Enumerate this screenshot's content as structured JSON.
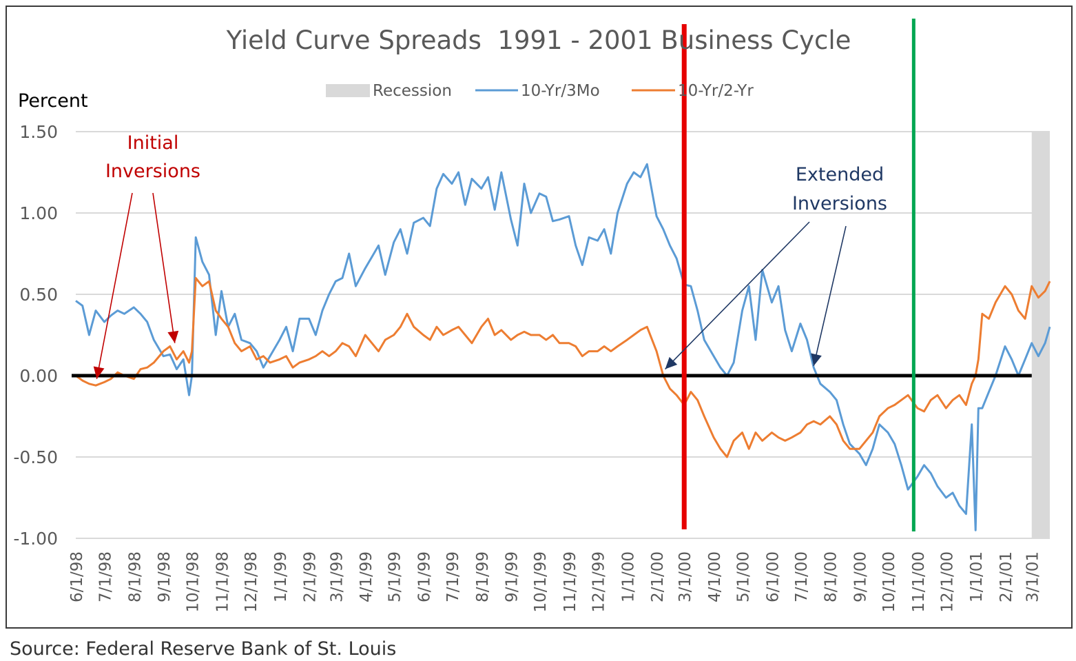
{
  "chart_data": {
    "type": "line",
    "title": "Yield Curve Spreads  1991 - 2001 Business Cycle",
    "ylabel": "Percent",
    "xlabel": "",
    "ylim": [
      -1.0,
      1.5
    ],
    "y_ticks": [
      "1.50",
      "1.00",
      "0.50",
      "0.00",
      "-0.50",
      "-1.00"
    ],
    "y_tick_values": [
      1.5,
      1.0,
      0.5,
      0.0,
      -0.5,
      -1.0
    ],
    "x_range": [
      "1998-06-01",
      "2001-03-20"
    ],
    "x_ticks": [
      "6/1/98",
      "7/1/98",
      "8/1/98",
      "9/1/98",
      "10/1/98",
      "11/1/98",
      "12/1/98",
      "1/1/99",
      "2/1/99",
      "3/1/99",
      "4/1/99",
      "5/1/99",
      "6/1/99",
      "7/1/99",
      "8/1/99",
      "9/1/99",
      "10/1/99",
      "11/1/99",
      "12/1/99",
      "1/1/00",
      "2/1/00",
      "3/1/00",
      "4/1/00",
      "5/1/00",
      "6/1/00",
      "7/1/00",
      "8/1/00",
      "9/1/00",
      "10/1/00",
      "11/1/00",
      "12/1/00",
      "1/1/01",
      "2/1/01",
      "3/1/01"
    ],
    "x_tick_dates": [
      "1998-06-01",
      "1998-07-01",
      "1998-08-01",
      "1998-09-01",
      "1998-10-01",
      "1998-11-01",
      "1998-12-01",
      "1999-01-01",
      "1999-02-01",
      "1999-03-01",
      "1999-04-01",
      "1999-05-01",
      "1999-06-01",
      "1999-07-01",
      "1999-08-01",
      "1999-09-01",
      "1999-10-01",
      "1999-11-01",
      "1999-12-01",
      "2000-01-01",
      "2000-02-01",
      "2000-03-01",
      "2000-04-01",
      "2000-05-01",
      "2000-06-01",
      "2000-07-01",
      "2000-08-01",
      "2000-09-01",
      "2000-10-01",
      "2000-11-01",
      "2000-12-01",
      "2001-01-01",
      "2001-02-01",
      "2001-03-01"
    ],
    "grid": true,
    "legend_position": "top-center",
    "recession": {
      "label": "Recession",
      "start": "2001-03-01",
      "end": "2001-03-20",
      "color": "#d9d9d9"
    },
    "series": [
      {
        "name": "10-Yr/3Mo",
        "color": "#5b9bd5",
        "x": [
          "1998-06-01",
          "1998-06-08",
          "1998-06-15",
          "1998-06-22",
          "1998-07-01",
          "1998-07-08",
          "1998-07-15",
          "1998-07-22",
          "1998-08-01",
          "1998-08-08",
          "1998-08-15",
          "1998-08-22",
          "1998-09-01",
          "1998-09-08",
          "1998-09-15",
          "1998-09-22",
          "1998-09-28",
          "1998-10-01",
          "1998-10-05",
          "1998-10-12",
          "1998-10-19",
          "1998-10-26",
          "1998-11-01",
          "1998-11-08",
          "1998-11-15",
          "1998-11-22",
          "1998-12-01",
          "1998-12-08",
          "1998-12-15",
          "1998-12-22",
          "1999-01-01",
          "1999-01-08",
          "1999-01-15",
          "1999-01-22",
          "1999-02-01",
          "1999-02-08",
          "1999-02-15",
          "1999-02-22",
          "1999-03-01",
          "1999-03-08",
          "1999-03-15",
          "1999-03-22",
          "1999-04-01",
          "1999-04-08",
          "1999-04-15",
          "1999-04-22",
          "1999-05-01",
          "1999-05-08",
          "1999-05-15",
          "1999-05-22",
          "1999-06-01",
          "1999-06-08",
          "1999-06-15",
          "1999-06-22",
          "1999-07-01",
          "1999-07-08",
          "1999-07-15",
          "1999-07-22",
          "1999-08-01",
          "1999-08-08",
          "1999-08-15",
          "1999-08-22",
          "1999-09-01",
          "1999-09-08",
          "1999-09-15",
          "1999-09-22",
          "1999-10-01",
          "1999-10-08",
          "1999-10-15",
          "1999-10-22",
          "1999-11-01",
          "1999-11-08",
          "1999-11-15",
          "1999-11-22",
          "1999-12-01",
          "1999-12-08",
          "1999-12-15",
          "1999-12-22",
          "2000-01-01",
          "2000-01-08",
          "2000-01-15",
          "2000-01-22",
          "2000-02-01",
          "2000-02-08",
          "2000-02-15",
          "2000-02-22",
          "2000-03-01",
          "2000-03-08",
          "2000-03-15",
          "2000-03-22",
          "2000-04-01",
          "2000-04-08",
          "2000-04-15",
          "2000-04-22",
          "2000-05-01",
          "2000-05-08",
          "2000-05-15",
          "2000-05-22",
          "2000-06-01",
          "2000-06-08",
          "2000-06-15",
          "2000-06-22",
          "2000-07-01",
          "2000-07-08",
          "2000-07-15",
          "2000-07-22",
          "2000-08-01",
          "2000-08-08",
          "2000-08-15",
          "2000-08-22",
          "2000-09-01",
          "2000-09-08",
          "2000-09-15",
          "2000-09-22",
          "2000-10-01",
          "2000-10-08",
          "2000-10-15",
          "2000-10-22",
          "2000-11-01",
          "2000-11-08",
          "2000-11-15",
          "2000-11-22",
          "2000-12-01",
          "2000-12-08",
          "2000-12-15",
          "2000-12-22",
          "2000-12-28",
          "2001-01-01",
          "2001-01-04",
          "2001-01-08",
          "2001-01-15",
          "2001-01-22",
          "2001-02-01",
          "2001-02-08",
          "2001-02-15",
          "2001-02-22",
          "2001-03-01",
          "2001-03-08",
          "2001-03-15",
          "2001-03-20"
        ],
        "values": [
          0.46,
          0.43,
          0.25,
          0.4,
          0.33,
          0.37,
          0.4,
          0.38,
          0.42,
          0.38,
          0.33,
          0.22,
          0.12,
          0.13,
          0.04,
          0.1,
          -0.12,
          0.0,
          0.85,
          0.7,
          0.62,
          0.25,
          0.52,
          0.3,
          0.38,
          0.22,
          0.2,
          0.15,
          0.05,
          0.12,
          0.22,
          0.3,
          0.15,
          0.35,
          0.35,
          0.25,
          0.4,
          0.5,
          0.58,
          0.6,
          0.75,
          0.55,
          0.66,
          0.73,
          0.8,
          0.62,
          0.82,
          0.9,
          0.75,
          0.94,
          0.97,
          0.92,
          1.15,
          1.24,
          1.18,
          1.25,
          1.05,
          1.21,
          1.15,
          1.22,
          1.02,
          1.25,
          0.96,
          0.8,
          1.18,
          1.0,
          1.12,
          1.1,
          0.95,
          0.96,
          0.98,
          0.8,
          0.68,
          0.85,
          0.83,
          0.9,
          0.75,
          1.0,
          1.18,
          1.25,
          1.22,
          1.3,
          0.98,
          0.9,
          0.8,
          0.72,
          0.56,
          0.55,
          0.4,
          0.22,
          0.12,
          0.05,
          0.0,
          0.08,
          0.4,
          0.55,
          0.22,
          0.65,
          0.45,
          0.55,
          0.28,
          0.15,
          0.32,
          0.22,
          0.05,
          -0.05,
          -0.1,
          -0.15,
          -0.3,
          -0.42,
          -0.48,
          -0.55,
          -0.45,
          -0.3,
          -0.35,
          -0.42,
          -0.55,
          -0.7,
          -0.62,
          -0.55,
          -0.6,
          -0.68,
          -0.75,
          -0.72,
          -0.8,
          -0.85,
          -0.3,
          -0.95,
          -0.2,
          -0.2,
          -0.1,
          0.0,
          0.18,
          0.1,
          0.0,
          0.1,
          0.2,
          0.12,
          0.2,
          0.3
        ]
      },
      {
        "name": "10-Yr/2-Yr",
        "color": "#ed7d31",
        "x": [
          "1998-06-01",
          "1998-06-08",
          "1998-06-15",
          "1998-06-22",
          "1998-07-01",
          "1998-07-08",
          "1998-07-15",
          "1998-07-22",
          "1998-08-01",
          "1998-08-08",
          "1998-08-15",
          "1998-08-22",
          "1998-09-01",
          "1998-09-08",
          "1998-09-15",
          "1998-09-22",
          "1998-09-28",
          "1998-10-01",
          "1998-10-05",
          "1998-10-12",
          "1998-10-19",
          "1998-10-26",
          "1998-11-01",
          "1998-11-08",
          "1998-11-15",
          "1998-11-22",
          "1998-12-01",
          "1998-12-08",
          "1998-12-15",
          "1998-12-22",
          "1999-01-01",
          "1999-01-08",
          "1999-01-15",
          "1999-01-22",
          "1999-02-01",
          "1999-02-08",
          "1999-02-15",
          "1999-02-22",
          "1999-03-01",
          "1999-03-08",
          "1999-03-15",
          "1999-03-22",
          "1999-04-01",
          "1999-04-08",
          "1999-04-15",
          "1999-04-22",
          "1999-05-01",
          "1999-05-08",
          "1999-05-15",
          "1999-05-22",
          "1999-06-01",
          "1999-06-08",
          "1999-06-15",
          "1999-06-22",
          "1999-07-01",
          "1999-07-08",
          "1999-07-15",
          "1999-07-22",
          "1999-08-01",
          "1999-08-08",
          "1999-08-15",
          "1999-08-22",
          "1999-09-01",
          "1999-09-08",
          "1999-09-15",
          "1999-09-22",
          "1999-10-01",
          "1999-10-08",
          "1999-10-15",
          "1999-10-22",
          "1999-11-01",
          "1999-11-08",
          "1999-11-15",
          "1999-11-22",
          "1999-12-01",
          "1999-12-08",
          "1999-12-15",
          "1999-12-22",
          "2000-01-01",
          "2000-01-08",
          "2000-01-15",
          "2000-01-22",
          "2000-02-01",
          "2000-02-08",
          "2000-02-15",
          "2000-02-22",
          "2000-03-01",
          "2000-03-08",
          "2000-03-15",
          "2000-03-22",
          "2000-04-01",
          "2000-04-08",
          "2000-04-15",
          "2000-04-22",
          "2000-05-01",
          "2000-05-08",
          "2000-05-15",
          "2000-05-22",
          "2000-06-01",
          "2000-06-08",
          "2000-06-15",
          "2000-06-22",
          "2000-07-01",
          "2000-07-08",
          "2000-07-15",
          "2000-07-22",
          "2000-08-01",
          "2000-08-08",
          "2000-08-15",
          "2000-08-22",
          "2000-09-01",
          "2000-09-08",
          "2000-09-15",
          "2000-09-22",
          "2000-10-01",
          "2000-10-08",
          "2000-10-15",
          "2000-10-22",
          "2000-11-01",
          "2000-11-08",
          "2000-11-15",
          "2000-11-22",
          "2000-12-01",
          "2000-12-08",
          "2000-12-15",
          "2000-12-22",
          "2000-12-28",
          "2001-01-01",
          "2001-01-04",
          "2001-01-08",
          "2001-01-15",
          "2001-01-22",
          "2001-02-01",
          "2001-02-08",
          "2001-02-15",
          "2001-02-22",
          "2001-03-01",
          "2001-03-08",
          "2001-03-15",
          "2001-03-20"
        ],
        "values": [
          0.0,
          -0.03,
          -0.05,
          -0.06,
          -0.04,
          -0.02,
          0.02,
          0.0,
          -0.02,
          0.04,
          0.05,
          0.08,
          0.15,
          0.18,
          0.1,
          0.15,
          0.08,
          0.15,
          0.6,
          0.55,
          0.58,
          0.4,
          0.35,
          0.3,
          0.2,
          0.15,
          0.18,
          0.1,
          0.12,
          0.08,
          0.1,
          0.12,
          0.05,
          0.08,
          0.1,
          0.12,
          0.15,
          0.12,
          0.15,
          0.2,
          0.18,
          0.12,
          0.25,
          0.2,
          0.15,
          0.22,
          0.25,
          0.3,
          0.38,
          0.3,
          0.25,
          0.22,
          0.3,
          0.25,
          0.28,
          0.3,
          0.25,
          0.2,
          0.3,
          0.35,
          0.25,
          0.28,
          0.22,
          0.25,
          0.27,
          0.25,
          0.25,
          0.22,
          0.25,
          0.2,
          0.2,
          0.18,
          0.12,
          0.15,
          0.15,
          0.18,
          0.15,
          0.18,
          0.22,
          0.25,
          0.28,
          0.3,
          0.15,
          0.0,
          -0.08,
          -0.12,
          -0.18,
          -0.1,
          -0.15,
          -0.25,
          -0.38,
          -0.45,
          -0.5,
          -0.4,
          -0.35,
          -0.45,
          -0.35,
          -0.4,
          -0.35,
          -0.38,
          -0.4,
          -0.38,
          -0.35,
          -0.3,
          -0.28,
          -0.3,
          -0.25,
          -0.3,
          -0.4,
          -0.45,
          -0.45,
          -0.4,
          -0.35,
          -0.25,
          -0.2,
          -0.18,
          -0.15,
          -0.12,
          -0.2,
          -0.22,
          -0.15,
          -0.12,
          -0.2,
          -0.15,
          -0.12,
          -0.18,
          -0.05,
          0.0,
          0.1,
          0.38,
          0.35,
          0.45,
          0.55,
          0.5,
          0.4,
          0.35,
          0.55,
          0.48,
          0.52,
          0.58
        ]
      }
    ],
    "reference_lines": [
      {
        "axis": "y",
        "value": 0.0,
        "color": "#000000"
      },
      {
        "axis": "x",
        "value": "2000-03-01",
        "color": "#e60000"
      },
      {
        "axis": "x",
        "value": "2000-10-28",
        "color": "#00a651"
      }
    ],
    "annotations": [
      {
        "lines": [
          "Initial",
          "Inversions"
        ],
        "color": "#c00000",
        "arrow_targets": [
          {
            "x": "1998-06-23",
            "y": -0.02
          },
          {
            "x": "1998-09-13",
            "y": 0.2
          }
        ]
      },
      {
        "lines": [
          "Extended",
          "Inversions"
        ],
        "color": "#1f3864",
        "arrow_targets": [
          {
            "x": "2000-02-10",
            "y": 0.04
          },
          {
            "x": "2000-07-15",
            "y": 0.06
          }
        ]
      }
    ]
  },
  "source_note": "Source: Federal Reserve Bank of St. Louis"
}
